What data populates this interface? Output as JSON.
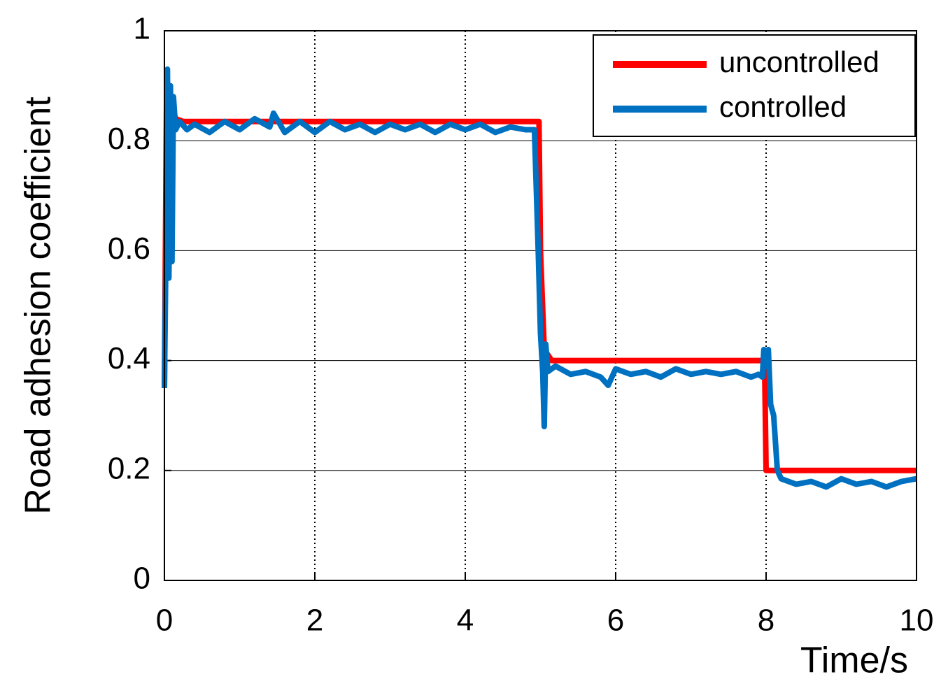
{
  "chart_data": {
    "type": "line",
    "ylabel": "Road  adhesion coefficient",
    "xlabel": "Time/s",
    "xlim": [
      0,
      10
    ],
    "xticks": [
      0,
      2,
      4,
      6,
      8,
      10
    ],
    "ylim": [
      0,
      1
    ],
    "yticks": [
      0,
      0.2,
      0.4,
      0.6,
      0.8,
      1
    ],
    "grid": true,
    "legend": "upper right",
    "series": [
      {
        "name": "uncontrolled",
        "color": "#ff0000",
        "x": [
          0,
          0.03,
          0.08,
          0.15,
          0.25,
          4.98,
          5.0,
          5.05,
          5.15,
          7.98,
          8.0,
          8.05,
          10
        ],
        "values": [
          0.35,
          0.9,
          0.87,
          0.84,
          0.835,
          0.835,
          0.6,
          0.42,
          0.4,
          0.4,
          0.2,
          0.2,
          0.2
        ]
      },
      {
        "name": "controlled",
        "color": "#0070c0",
        "x": [
          0,
          0.02,
          0.04,
          0.06,
          0.08,
          0.1,
          0.12,
          0.15,
          0.2,
          0.3,
          0.4,
          0.6,
          0.8,
          1.0,
          1.2,
          1.4,
          1.45,
          1.6,
          1.8,
          2.0,
          2.2,
          2.4,
          2.6,
          2.8,
          3.0,
          3.2,
          3.4,
          3.6,
          3.8,
          4.0,
          4.2,
          4.4,
          4.6,
          4.8,
          4.92,
          4.97,
          5.0,
          5.03,
          5.05,
          5.07,
          5.1,
          5.2,
          5.4,
          5.6,
          5.8,
          5.9,
          6.0,
          6.2,
          6.4,
          6.6,
          6.8,
          7.0,
          7.2,
          7.4,
          7.6,
          7.8,
          7.9,
          7.95,
          7.97,
          8.0,
          8.03,
          8.06,
          8.1,
          8.15,
          8.2,
          8.4,
          8.6,
          8.8,
          9.0,
          9.2,
          9.4,
          9.6,
          9.8,
          10.0
        ],
        "values": [
          0.35,
          0.6,
          0.93,
          0.55,
          0.9,
          0.58,
          0.88,
          0.82,
          0.835,
          0.82,
          0.83,
          0.815,
          0.835,
          0.82,
          0.84,
          0.825,
          0.85,
          0.815,
          0.835,
          0.815,
          0.835,
          0.82,
          0.83,
          0.815,
          0.83,
          0.82,
          0.83,
          0.815,
          0.83,
          0.82,
          0.83,
          0.815,
          0.825,
          0.82,
          0.82,
          0.6,
          0.45,
          0.38,
          0.28,
          0.43,
          0.38,
          0.39,
          0.375,
          0.38,
          0.37,
          0.355,
          0.385,
          0.375,
          0.38,
          0.37,
          0.385,
          0.375,
          0.38,
          0.375,
          0.38,
          0.37,
          0.375,
          0.37,
          0.42,
          0.39,
          0.42,
          0.32,
          0.3,
          0.2,
          0.185,
          0.175,
          0.18,
          0.17,
          0.185,
          0.175,
          0.18,
          0.17,
          0.18,
          0.185
        ]
      }
    ]
  }
}
